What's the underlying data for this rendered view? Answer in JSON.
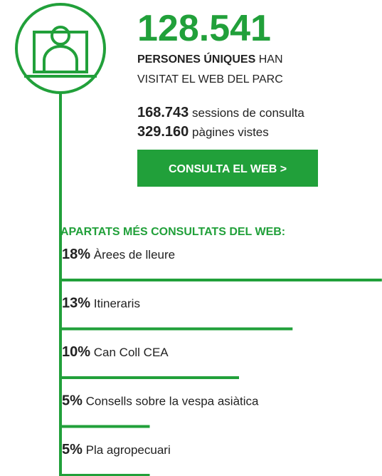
{
  "headline": {
    "number": "128.541",
    "bold": "PERSONES ÚNIQUES",
    "rest": "HAN",
    "line2": "VISITAT EL WEB DEL PARC"
  },
  "stats": [
    {
      "value": "168.743",
      "label": "sessions de consulta"
    },
    {
      "value": "329.160",
      "label": "pàgines vistes"
    }
  ],
  "button": "CONSULTA EL WEB >",
  "chart_data": {
    "type": "bar",
    "title": "APARTATS MÉS CONSULTATS DEL WEB:",
    "categories": [
      "Àrees de lleure",
      "Itineraris",
      "Can Coll CEA",
      "Consells sobre la vespa asiàtica",
      "Pla agropecuari"
    ],
    "values": [
      18,
      13,
      10,
      5,
      5
    ],
    "value_labels": [
      "18%",
      "13%",
      "10%",
      "5%",
      "5%"
    ],
    "color": "#21a03a"
  }
}
